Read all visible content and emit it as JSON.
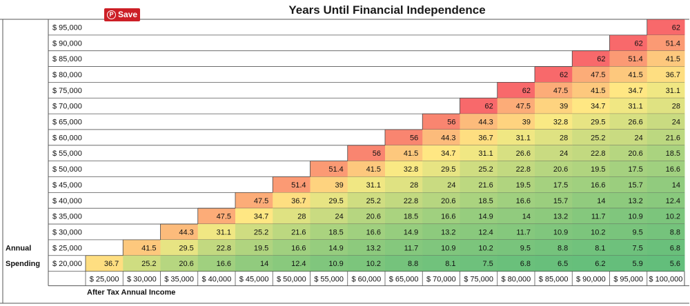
{
  "chart_data": {
    "type": "heatmap",
    "title": "Years Until Financial Independence",
    "xlabel": "After Tax Annual Income",
    "ylabel_line1": "Annual",
    "ylabel_line2": "Spending",
    "x_categories": [
      "$ 25,000",
      "$ 30,000",
      "$ 35,000",
      "$ 40,000",
      "$ 45,000",
      "$ 50,000",
      "$ 55,000",
      "$ 60,000",
      "$ 65,000",
      "$ 70,000",
      "$ 75,000",
      "$ 80,000",
      "$ 85,000",
      "$ 90,000",
      "$ 95,000",
      "$ 100,000"
    ],
    "y_categories": [
      "$ 95,000",
      "$ 90,000",
      "$ 85,000",
      "$ 80,000",
      "$ 75,000",
      "$ 70,000",
      "$ 65,000",
      "$ 60,000",
      "$ 55,000",
      "$ 50,000",
      "$ 45,000",
      "$ 40,000",
      "$ 35,000",
      "$ 30,000",
      "$ 25,000",
      "$ 20,000"
    ],
    "values": [
      [
        null,
        null,
        null,
        null,
        null,
        null,
        null,
        null,
        null,
        null,
        null,
        null,
        null,
        null,
        null,
        62
      ],
      [
        null,
        null,
        null,
        null,
        null,
        null,
        null,
        null,
        null,
        null,
        null,
        null,
        null,
        null,
        62,
        51.4
      ],
      [
        null,
        null,
        null,
        null,
        null,
        null,
        null,
        null,
        null,
        null,
        null,
        null,
        null,
        62,
        51.4,
        41.5
      ],
      [
        null,
        null,
        null,
        null,
        null,
        null,
        null,
        null,
        null,
        null,
        null,
        null,
        62,
        47.5,
        41.5,
        36.7
      ],
      [
        null,
        null,
        null,
        null,
        null,
        null,
        null,
        null,
        null,
        null,
        null,
        62,
        47.5,
        41.5,
        34.7,
        31.1
      ],
      [
        null,
        null,
        null,
        null,
        null,
        null,
        null,
        null,
        null,
        null,
        62,
        47.5,
        39,
        34.7,
        31.1,
        28
      ],
      [
        null,
        null,
        null,
        null,
        null,
        null,
        null,
        null,
        null,
        56,
        44.3,
        39,
        32.8,
        29.5,
        26.6,
        24
      ],
      [
        null,
        null,
        null,
        null,
        null,
        null,
        null,
        null,
        56,
        44.3,
        36.7,
        31.1,
        28,
        25.2,
        24,
        21.6
      ],
      [
        null,
        null,
        null,
        null,
        null,
        null,
        null,
        56,
        41.5,
        34.7,
        31.1,
        26.6,
        24,
        22.8,
        20.6,
        18.5
      ],
      [
        null,
        null,
        null,
        null,
        null,
        null,
        51.4,
        41.5,
        32.8,
        29.5,
        25.2,
        22.8,
        20.6,
        19.5,
        17.5,
        16.6
      ],
      [
        null,
        null,
        null,
        null,
        null,
        51.4,
        39,
        31.1,
        28,
        24,
        21.6,
        19.5,
        17.5,
        16.6,
        15.7,
        14
      ],
      [
        null,
        null,
        null,
        null,
        47.5,
        36.7,
        29.5,
        25.2,
        22.8,
        20.6,
        18.5,
        16.6,
        15.7,
        14,
        13.2,
        12.4
      ],
      [
        null,
        null,
        null,
        47.5,
        34.7,
        28,
        24,
        20.6,
        18.5,
        16.6,
        14.9,
        14,
        13.2,
        11.7,
        10.9,
        10.2
      ],
      [
        null,
        null,
        44.3,
        31.1,
        25.2,
        21.6,
        18.5,
        16.6,
        14.9,
        13.2,
        12.4,
        11.7,
        10.9,
        10.2,
        9.5,
        8.8
      ],
      [
        null,
        41.5,
        29.5,
        22.8,
        19.5,
        16.6,
        14.9,
        13.2,
        11.7,
        10.9,
        10.2,
        9.5,
        8.8,
        8.1,
        7.5,
        6.8
      ],
      [
        36.7,
        25.2,
        20.6,
        16.6,
        14,
        12.4,
        10.9,
        10.2,
        8.8,
        8.1,
        7.5,
        6.8,
        6.5,
        6.2,
        5.9,
        5.6
      ]
    ],
    "color_scale": {
      "low": "#63be7b",
      "mid": "#ffeb84",
      "high": "#f8696b"
    },
    "grid": true,
    "legend": "none"
  },
  "pin_button": {
    "label": "Save",
    "icon": "pinterest-icon"
  }
}
